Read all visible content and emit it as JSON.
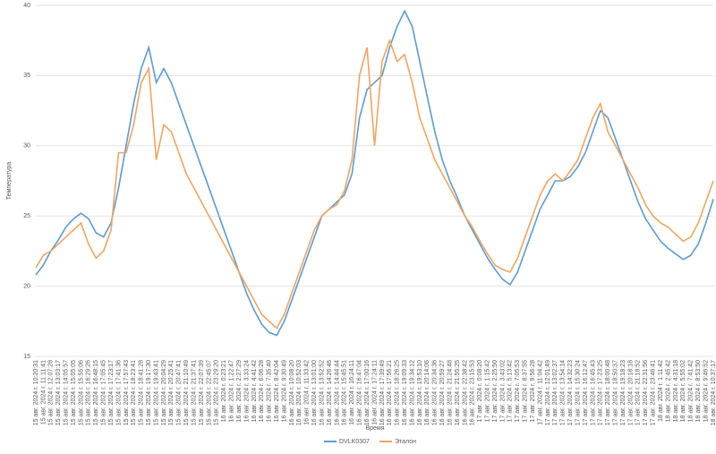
{
  "chart_data": {
    "type": "line",
    "xlabel": "Время",
    "ylabel": "Температура",
    "categories": [
      "15 авг. 2024 г. 10:20:31",
      "15 авг. 2024 г. 11:11:41",
      "15 авг. 2024 г. 12:07:28",
      "15 авг. 2024 г. 13:03:17",
      "15 авг. 2024 г. 14:05:57",
      "15 авг. 2024 г. 15:05:05",
      "15 авг. 2024 г. 15:55:06",
      "15 авг. 2024 г. 16:29:26",
      "15 авг. 2024 г. 16:48:15",
      "15 авг. 2024 г. 17:05:45",
      "15 авг. 2024 г. 17:23:17",
      "15 авг. 2024 г. 17:41:36",
      "15 авг. 2024 г. 17:57:43",
      "15 авг. 2024 г. 18:23:41",
      "15 авг. 2024 г. 18:41:28",
      "15 авг. 2024 г. 19:17:30",
      "15 авг. 2024 г. 19:43:41",
      "15 авг. 2024 г. 20:04:29",
      "15 авг. 2024 г. 20:25:41",
      "15 авг. 2024 г. 20:47:41",
      "15 авг. 2024 г. 21:10:49",
      "15 авг. 2024 г. 21:37:41",
      "15 авг. 2024 г. 22:07:39",
      "15 авг. 2024 г. 22:45:07",
      "15 авг. 2024 г. 23:29:20",
      "16 авг. 2024 г. 0:23:21",
      "16 авг. 2024 г. 1:22:47",
      "16 авг. 2024 г. 2:27:29",
      "16 авг. 2024 г. 3:33:24",
      "16 авг. 2024 г. 4:41:42",
      "16 авг. 2024 г. 6:06:28",
      "16 авг. 2024 г. 7:35:40",
      "16 авг. 2024 г. 8:42:04",
      "16 авг. 2024 г. 9:30:49",
      "16 авг. 2024 г. 10:08:20",
      "16 авг. 2024 г. 10:52:03",
      "16 авг. 2024 г. 11:33:42",
      "16 авг. 2024 г. 13:01:00",
      "16 авг. 2024 г. 13:52:52",
      "16 авг. 2024 г. 14:26:46",
      "16 авг. 2024 г. 14:44:44",
      "16 авг. 2024 г. 15:45:51",
      "16 авг. 2024 г. 16:24:11",
      "16 авг. 2024 г. 16:47:04",
      "16 авг. 2024 г. 17:00:16",
      "16 авг. 2024 г. 17:24:11",
      "16 авг. 2024 г. 17:39:49",
      "16 авг. 2024 г. 17:56:21",
      "16 авг. 2024 г. 18:26:25",
      "16 авг. 2024 г. 19:09:33",
      "16 авг. 2024 г. 19:34:12",
      "16 авг. 2024 г. 19:53:10",
      "16 авг. 2024 г. 20:14:06",
      "16 авг. 2024 г. 20:34:36",
      "16 авг. 2024 г. 20:59:27",
      "16 авг. 2024 г. 21:24:48",
      "16 авг. 2024 г. 21:55:25",
      "16 авг. 2024 г. 22:38:42",
      "16 авг. 2024 г. 23:15:53",
      "17 авг. 2024 г. 0:08:20",
      "17 авг. 2024 г. 1:15:42",
      "17 авг. 2024 г. 2:25:50",
      "17 авг. 2024 г. 3:43:02",
      "17 авг. 2024 г. 5:13:42",
      "17 авг. 2024 г. 7:05:53",
      "17 авг. 2024 г. 8:37:55",
      "17 авг. 2024 г. 9:56:28",
      "17 авг. 2024 г. 11:04:42",
      "17 авг. 2024 г. 12:01:49",
      "17 авг. 2024 г. 13:02:37",
      "17 авг. 2024 г. 13:54:14",
      "17 авг. 2024 г. 14:32:23",
      "17 авг. 2024 г. 15:30:24",
      "17 авг. 2024 г. 16:12:47",
      "17 авг. 2024 г. 16:45:43",
      "17 авг. 2024 г. 17:23:25",
      "17 авг. 2024 г. 18:00:48",
      "17 авг. 2024 г. 18:50:37",
      "17 авг. 2024 г. 19:18:23",
      "17 авг. 2024 г. 20:18:18",
      "17 авг. 2024 г. 21:18:52",
      "17 авг. 2024 г. 22:31:56",
      "17 авг. 2024 г. 23:46:41",
      "18 авг. 2024 г. 1:11:42",
      "18 авг. 2024 г. 2:45:42",
      "18 авг. 2024 г. 4:31:18",
      "18 авг. 2024 г. 5:55:02",
      "18 авг. 2024 г. 7:41:42",
      "18 авг. 2024 г. 8:53:50",
      "18 авг. 2024 г. 9:46:52",
      "18 авг. 2024 г. 10:37:17"
    ],
    "series": [
      {
        "name": "DVLK0307",
        "color": "#5b9bd5",
        "values": [
          20.8,
          21.5,
          22.5,
          23.3,
          24.2,
          24.8,
          25.2,
          24.8,
          23.8,
          23.5,
          24.5,
          27,
          30,
          33,
          35.5,
          37,
          34.5,
          35.5,
          34.5,
          33,
          31.5,
          30,
          28.5,
          27,
          25.5,
          24,
          22.5,
          21,
          19.5,
          18.3,
          17.3,
          16.7,
          16.5,
          17.5,
          19,
          20.5,
          22,
          23.5,
          25,
          25.5,
          26,
          26.5,
          28,
          32,
          34,
          34.5,
          35,
          37,
          38.5,
          39.6,
          38.5,
          36,
          33.5,
          31,
          29,
          27.5,
          26.3,
          25,
          24,
          23,
          22,
          21.2,
          20.5,
          20.1,
          21,
          22.5,
          24,
          25.5,
          26.5,
          27.5,
          27.5,
          27.8,
          28.5,
          29.5,
          31,
          32.5,
          32,
          30.5,
          29,
          27.5,
          26,
          24.8,
          24,
          23.2,
          22.7,
          22.3,
          21.9,
          22.2,
          23,
          24.5,
          26.2
        ]
      },
      {
        "name": "Эталон",
        "color": "#f4a460",
        "values": [
          21.3,
          22.2,
          22.5,
          23,
          23.5,
          24,
          24.5,
          23,
          22,
          22.5,
          24,
          29.5,
          29.5,
          31.5,
          34.5,
          35.5,
          29,
          31.5,
          31,
          29.5,
          28,
          27,
          26,
          25,
          24,
          23,
          22,
          21,
          20,
          19,
          18,
          17.5,
          17,
          18,
          19.5,
          21,
          22.5,
          24,
          25,
          25.5,
          25.8,
          26.8,
          29,
          35,
          37,
          30,
          36,
          37.5,
          36,
          36.5,
          34.5,
          32,
          30.5,
          29,
          28,
          27,
          26,
          25,
          24.2,
          23.2,
          22.3,
          21.5,
          21.2,
          21,
          22,
          23.5,
          25,
          26.5,
          27.5,
          28,
          27.5,
          28.2,
          29,
          30.5,
          32,
          33,
          31,
          30,
          29,
          28,
          27,
          25.8,
          25,
          24.5,
          24.2,
          23.7,
          23.2,
          23.5,
          24.5,
          26,
          27.5
        ]
      }
    ],
    "ylim": [
      15,
      40
    ],
    "yticks": [
      15,
      20,
      25,
      30,
      35,
      40
    ],
    "grid": true,
    "legend": "bottom"
  }
}
